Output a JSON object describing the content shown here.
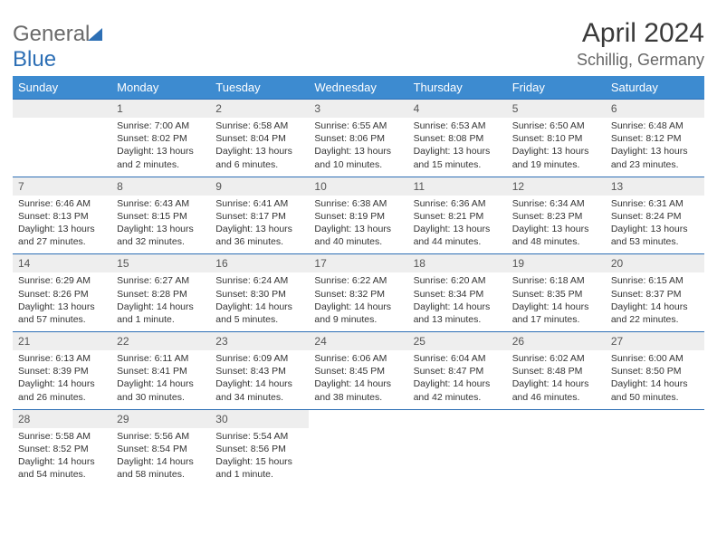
{
  "logo": {
    "word1": "General",
    "word2": "Blue"
  },
  "title": "April 2024",
  "location": "Schillig, Germany",
  "weekdays": [
    "Sunday",
    "Monday",
    "Tuesday",
    "Wednesday",
    "Thursday",
    "Friday",
    "Saturday"
  ],
  "colors": {
    "header_bg": "#3d8bd0",
    "rule": "#2d6fb5",
    "daynum_bg": "#eeeeee",
    "text": "#333333",
    "title": "#3a3a3a",
    "subtitle": "#666666"
  },
  "start_offset": 1,
  "days": [
    {
      "n": "1",
      "sunrise": "Sunrise: 7:00 AM",
      "sunset": "Sunset: 8:02 PM",
      "daylight": "Daylight: 13 hours and 2 minutes."
    },
    {
      "n": "2",
      "sunrise": "Sunrise: 6:58 AM",
      "sunset": "Sunset: 8:04 PM",
      "daylight": "Daylight: 13 hours and 6 minutes."
    },
    {
      "n": "3",
      "sunrise": "Sunrise: 6:55 AM",
      "sunset": "Sunset: 8:06 PM",
      "daylight": "Daylight: 13 hours and 10 minutes."
    },
    {
      "n": "4",
      "sunrise": "Sunrise: 6:53 AM",
      "sunset": "Sunset: 8:08 PM",
      "daylight": "Daylight: 13 hours and 15 minutes."
    },
    {
      "n": "5",
      "sunrise": "Sunrise: 6:50 AM",
      "sunset": "Sunset: 8:10 PM",
      "daylight": "Daylight: 13 hours and 19 minutes."
    },
    {
      "n": "6",
      "sunrise": "Sunrise: 6:48 AM",
      "sunset": "Sunset: 8:12 PM",
      "daylight": "Daylight: 13 hours and 23 minutes."
    },
    {
      "n": "7",
      "sunrise": "Sunrise: 6:46 AM",
      "sunset": "Sunset: 8:13 PM",
      "daylight": "Daylight: 13 hours and 27 minutes."
    },
    {
      "n": "8",
      "sunrise": "Sunrise: 6:43 AM",
      "sunset": "Sunset: 8:15 PM",
      "daylight": "Daylight: 13 hours and 32 minutes."
    },
    {
      "n": "9",
      "sunrise": "Sunrise: 6:41 AM",
      "sunset": "Sunset: 8:17 PM",
      "daylight": "Daylight: 13 hours and 36 minutes."
    },
    {
      "n": "10",
      "sunrise": "Sunrise: 6:38 AM",
      "sunset": "Sunset: 8:19 PM",
      "daylight": "Daylight: 13 hours and 40 minutes."
    },
    {
      "n": "11",
      "sunrise": "Sunrise: 6:36 AM",
      "sunset": "Sunset: 8:21 PM",
      "daylight": "Daylight: 13 hours and 44 minutes."
    },
    {
      "n": "12",
      "sunrise": "Sunrise: 6:34 AM",
      "sunset": "Sunset: 8:23 PM",
      "daylight": "Daylight: 13 hours and 48 minutes."
    },
    {
      "n": "13",
      "sunrise": "Sunrise: 6:31 AM",
      "sunset": "Sunset: 8:24 PM",
      "daylight": "Daylight: 13 hours and 53 minutes."
    },
    {
      "n": "14",
      "sunrise": "Sunrise: 6:29 AM",
      "sunset": "Sunset: 8:26 PM",
      "daylight": "Daylight: 13 hours and 57 minutes."
    },
    {
      "n": "15",
      "sunrise": "Sunrise: 6:27 AM",
      "sunset": "Sunset: 8:28 PM",
      "daylight": "Daylight: 14 hours and 1 minute."
    },
    {
      "n": "16",
      "sunrise": "Sunrise: 6:24 AM",
      "sunset": "Sunset: 8:30 PM",
      "daylight": "Daylight: 14 hours and 5 minutes."
    },
    {
      "n": "17",
      "sunrise": "Sunrise: 6:22 AM",
      "sunset": "Sunset: 8:32 PM",
      "daylight": "Daylight: 14 hours and 9 minutes."
    },
    {
      "n": "18",
      "sunrise": "Sunrise: 6:20 AM",
      "sunset": "Sunset: 8:34 PM",
      "daylight": "Daylight: 14 hours and 13 minutes."
    },
    {
      "n": "19",
      "sunrise": "Sunrise: 6:18 AM",
      "sunset": "Sunset: 8:35 PM",
      "daylight": "Daylight: 14 hours and 17 minutes."
    },
    {
      "n": "20",
      "sunrise": "Sunrise: 6:15 AM",
      "sunset": "Sunset: 8:37 PM",
      "daylight": "Daylight: 14 hours and 22 minutes."
    },
    {
      "n": "21",
      "sunrise": "Sunrise: 6:13 AM",
      "sunset": "Sunset: 8:39 PM",
      "daylight": "Daylight: 14 hours and 26 minutes."
    },
    {
      "n": "22",
      "sunrise": "Sunrise: 6:11 AM",
      "sunset": "Sunset: 8:41 PM",
      "daylight": "Daylight: 14 hours and 30 minutes."
    },
    {
      "n": "23",
      "sunrise": "Sunrise: 6:09 AM",
      "sunset": "Sunset: 8:43 PM",
      "daylight": "Daylight: 14 hours and 34 minutes."
    },
    {
      "n": "24",
      "sunrise": "Sunrise: 6:06 AM",
      "sunset": "Sunset: 8:45 PM",
      "daylight": "Daylight: 14 hours and 38 minutes."
    },
    {
      "n": "25",
      "sunrise": "Sunrise: 6:04 AM",
      "sunset": "Sunset: 8:47 PM",
      "daylight": "Daylight: 14 hours and 42 minutes."
    },
    {
      "n": "26",
      "sunrise": "Sunrise: 6:02 AM",
      "sunset": "Sunset: 8:48 PM",
      "daylight": "Daylight: 14 hours and 46 minutes."
    },
    {
      "n": "27",
      "sunrise": "Sunrise: 6:00 AM",
      "sunset": "Sunset: 8:50 PM",
      "daylight": "Daylight: 14 hours and 50 minutes."
    },
    {
      "n": "28",
      "sunrise": "Sunrise: 5:58 AM",
      "sunset": "Sunset: 8:52 PM",
      "daylight": "Daylight: 14 hours and 54 minutes."
    },
    {
      "n": "29",
      "sunrise": "Sunrise: 5:56 AM",
      "sunset": "Sunset: 8:54 PM",
      "daylight": "Daylight: 14 hours and 58 minutes."
    },
    {
      "n": "30",
      "sunrise": "Sunrise: 5:54 AM",
      "sunset": "Sunset: 8:56 PM",
      "daylight": "Daylight: 15 hours and 1 minute."
    }
  ]
}
